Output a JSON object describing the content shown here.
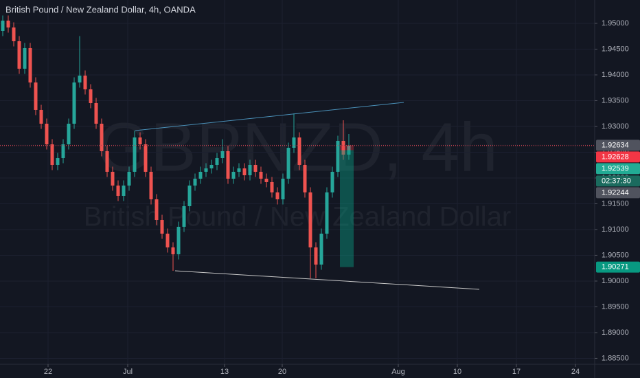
{
  "chart_data": {
    "type": "candlestick",
    "title": "British Pound / New Zealand Dollar, 4h, OANDA",
    "watermark": {
      "symbol": "GBPNZD, 4h",
      "description": "British Pound / New Zealand Dollar"
    },
    "up_color": "#26a69a",
    "down_color": "#ef5350",
    "open": [
      1.94853,
      1.95053,
      1.9492,
      1.94653,
      1.9412,
      1.9452,
      1.93853,
      1.9332,
      1.93053,
      1.92653,
      1.92253,
      1.92386,
      1.92653,
      1.93053,
      1.93853,
      1.93986,
      1.9372,
      1.93453,
      1.93053,
      1.9252,
      1.9212,
      1.91853,
      1.91653,
      1.91853,
      1.9212,
      1.92786,
      1.92653,
      1.9212,
      1.91586,
      1.91186,
      1.9092,
      1.90653,
      1.9052,
      1.91053,
      1.91453,
      1.91853,
      1.91986,
      1.9212,
      1.92186,
      1.92253,
      1.92386,
      1.9252,
      1.91986,
      1.9212,
      1.92186,
      1.92053,
      1.92253,
      1.9212,
      1.91986,
      1.9192,
      1.9172,
      1.91586,
      1.91986,
      1.92586,
      1.92786,
      1.92253,
      1.9172,
      1.90653,
      1.9032,
      1.9092,
      1.9172,
      1.9212,
      1.9272,
      1.92453
    ],
    "high": [
      1.95153,
      1.95153,
      1.9502,
      1.94753,
      1.9462,
      1.9462,
      1.93953,
      1.9342,
      1.93153,
      1.92753,
      1.92486,
      1.92753,
      1.93153,
      1.93953,
      1.94753,
      1.94086,
      1.9382,
      1.93553,
      1.93153,
      1.9262,
      1.9222,
      1.91953,
      1.91953,
      1.9222,
      1.9292,
      1.92886,
      1.92753,
      1.9222,
      1.91686,
      1.91286,
      1.9102,
      1.90753,
      1.91153,
      1.91553,
      1.91953,
      1.92086,
      1.9222,
      1.92286,
      1.92353,
      1.92486,
      1.92753,
      1.9262,
      1.9222,
      1.92286,
      1.92286,
      1.92353,
      1.92353,
      1.9222,
      1.92086,
      1.9202,
      1.9182,
      1.92086,
      1.92686,
      1.93253,
      1.92886,
      1.92353,
      1.9182,
      1.90753,
      1.9102,
      1.9182,
      1.9222,
      1.9282,
      1.9312,
      1.92853
    ],
    "low": [
      1.94753,
      1.9482,
      1.94553,
      1.9402,
      1.9402,
      1.93753,
      1.9322,
      1.92953,
      1.92553,
      1.92153,
      1.92153,
      1.92286,
      1.92553,
      1.92953,
      1.93753,
      1.9362,
      1.93353,
      1.92953,
      1.9242,
      1.9202,
      1.91753,
      1.91553,
      1.91553,
      1.91753,
      1.9202,
      1.92553,
      1.9202,
      1.91486,
      1.91086,
      1.9082,
      1.90553,
      1.902,
      1.9042,
      1.90953,
      1.91353,
      1.91753,
      1.91886,
      1.9202,
      1.92086,
      1.92153,
      1.92286,
      1.91886,
      1.91886,
      1.9202,
      1.91953,
      1.91953,
      1.9202,
      1.91886,
      1.9182,
      1.9162,
      1.91486,
      1.91486,
      1.91886,
      1.92486,
      1.92153,
      1.9162,
      1.90053,
      1.90053,
      1.9022,
      1.9082,
      1.9162,
      1.9202,
      1.92353,
      1.92353
    ],
    "close": [
      1.95053,
      1.9492,
      1.94653,
      1.9412,
      1.9452,
      1.93853,
      1.9332,
      1.93053,
      1.92653,
      1.92253,
      1.92386,
      1.92653,
      1.93053,
      1.93853,
      1.93986,
      1.9372,
      1.93453,
      1.93053,
      1.9252,
      1.9212,
      1.91853,
      1.91653,
      1.91853,
      1.9212,
      1.92786,
      1.92653,
      1.9212,
      1.91586,
      1.91186,
      1.9092,
      1.90653,
      1.9052,
      1.91053,
      1.91453,
      1.91853,
      1.91986,
      1.9212,
      1.92186,
      1.92253,
      1.92386,
      1.9252,
      1.91986,
      1.9212,
      1.92186,
      1.92053,
      1.92253,
      1.9212,
      1.91986,
      1.9192,
      1.9172,
      1.91586,
      1.91986,
      1.92586,
      1.92786,
      1.92253,
      1.9172,
      1.90653,
      1.9032,
      1.9092,
      1.9172,
      1.9212,
      1.9272,
      1.92453,
      1.92628
    ],
    "xlim": [
      -0.5,
      107.75
    ],
    "xticks": [
      {
        "value": 8.25,
        "label": "22"
      },
      {
        "value": 22.75,
        "label": "Jul"
      },
      {
        "value": 40.375,
        "label": "13"
      },
      {
        "value": 50.875,
        "label": "20"
      },
      {
        "value": 72,
        "label": "Aug"
      },
      {
        "value": 82.75,
        "label": "10"
      },
      {
        "value": 93.5,
        "label": "17"
      },
      {
        "value": 104.25,
        "label": "24"
      }
    ],
    "ylim": [
      1.88386,
      1.95453
    ],
    "yticks": [
      {
        "value": 1.95,
        "label": "1.95000"
      },
      {
        "value": 1.945,
        "label": "1.94500"
      },
      {
        "value": 1.94,
        "label": "1.94000"
      },
      {
        "value": 1.935,
        "label": "1.93500"
      },
      {
        "value": 1.93,
        "label": "1.93000"
      },
      {
        "value": 1.925,
        "label": "1.92500"
      },
      {
        "value": 1.92,
        "label": "1.92000"
      },
      {
        "value": 1.915,
        "label": "1.91500"
      },
      {
        "value": 1.91,
        "label": "1.91000"
      },
      {
        "value": 1.905,
        "label": "1.90500"
      },
      {
        "value": 1.9,
        "label": "1.90000"
      },
      {
        "value": 1.895,
        "label": "1.89500"
      },
      {
        "value": 1.89,
        "label": "1.89000"
      },
      {
        "value": 1.885,
        "label": "1.88500"
      }
    ],
    "grid": true,
    "price_labels": [
      {
        "value": 1.92634,
        "label": "1.92634",
        "color": "#50535e"
      },
      {
        "value": 1.92628,
        "label": "1.92628",
        "color": "#f23645"
      },
      {
        "value": 1.92539,
        "label": "1.92539",
        "color": "#22ab94"
      },
      {
        "value": 1.92244,
        "label": "1.92244",
        "color": "#50535e"
      },
      {
        "value": 1.90271,
        "label": "1.90271",
        "color": "#089981"
      }
    ],
    "countdown": "02:37:30",
    "trend_lines": [
      {
        "x": [
          24.125,
          73
        ],
        "y": [
          1.9292,
          1.93466
        ],
        "color": "#4a90b8"
      },
      {
        "x": [
          31.375,
          86.75
        ],
        "y": [
          1.902,
          1.8984
        ],
        "color": "#c8c8c8"
      }
    ],
    "position": {
      "x": [
        61.375,
        63.875
      ]
    }
  }
}
